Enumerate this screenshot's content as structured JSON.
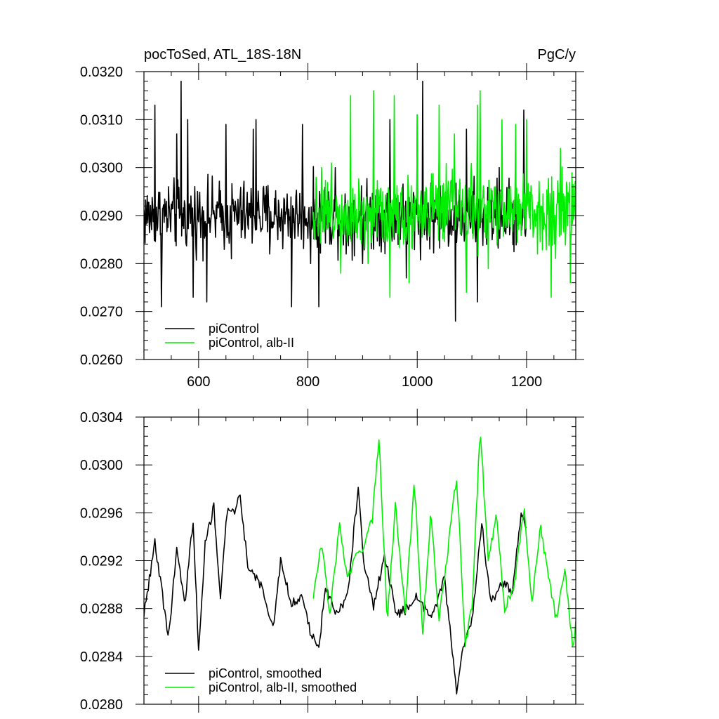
{
  "colors": {
    "piControl": "#000000",
    "alb_II": "#00ee00",
    "axis": "#000000"
  },
  "chart_data": [
    {
      "type": "line",
      "title_left": "pocToSed, ATL_18S-18N",
      "title_right": "PgC/y",
      "xlabel": "",
      "ylabel": "",
      "xlim": [
        500,
        1290
      ],
      "ylim": [
        0.026,
        0.032
      ],
      "xticks": [
        600,
        800,
        1000,
        1200
      ],
      "xtick_labels": [
        "600",
        "800",
        "1000",
        "1200"
      ],
      "show_xtick_labels": true,
      "yticks": [
        0.026,
        0.027,
        0.028,
        0.029,
        0.03,
        0.031,
        0.032
      ],
      "ytick_labels": [
        "0.0260",
        "0.0270",
        "0.0280",
        "0.0290",
        "0.0300",
        "0.0310",
        "0.0320"
      ],
      "grid": false,
      "legend": {
        "position": "bottom-left",
        "entries": [
          "piControl",
          "piControl, alb-II"
        ]
      },
      "series": [
        {
          "name": "piControl",
          "color_key": "piControl",
          "x_start": 500,
          "x_end": 1200,
          "mean": 0.029,
          "amp": 0.00105,
          "x": [
            520,
            532,
            560,
            568,
            580,
            590,
            615,
            650,
            660,
            700,
            705,
            730,
            770,
            790,
            805,
            820,
            850,
            870,
            900,
            950,
            980,
            1000,
            1010,
            1040,
            1070,
            1090,
            1110,
            1150,
            1180,
            1195
          ],
          "y": [
            0.0313,
            0.0271,
            0.0307,
            0.0318,
            0.031,
            0.0273,
            0.0272,
            0.0309,
            0.0281,
            0.0308,
            0.031,
            0.0282,
            0.0271,
            0.0309,
            0.028,
            0.0271,
            0.03,
            0.0282,
            0.028,
            0.031,
            0.0277,
            0.0311,
            0.0318,
            0.0303,
            0.0268,
            0.0308,
            0.0272,
            0.03,
            0.0301,
            0.0312
          ]
        },
        {
          "name": "piControl, alb-II",
          "color_key": "alb_II",
          "x_start": 810,
          "x_end": 1290,
          "mean": 0.0291,
          "amp": 0.00115,
          "x": [
            825,
            860,
            878,
            910,
            920,
            950,
            958,
            985,
            1000,
            1040,
            1068,
            1090,
            1110,
            1115,
            1130,
            1155,
            1180,
            1200,
            1220,
            1245,
            1262,
            1280
          ],
          "y": [
            0.03,
            0.0278,
            0.0315,
            0.028,
            0.0316,
            0.0273,
            0.0315,
            0.0276,
            0.0311,
            0.0313,
            0.0307,
            0.0274,
            0.0313,
            0.0316,
            0.0279,
            0.031,
            0.0309,
            0.031,
            0.0282,
            0.0273,
            0.0304,
            0.0276
          ]
        }
      ]
    },
    {
      "type": "line",
      "title_left": "",
      "title_right": "",
      "xlabel": "",
      "ylabel": "",
      "xlim": [
        500,
        1290
      ],
      "ylim": [
        0.028,
        0.0304
      ],
      "xticks": [
        600,
        800,
        1000,
        1200
      ],
      "xtick_labels": [
        "600",
        "800",
        "1000",
        "1200"
      ],
      "show_xtick_labels": false,
      "yticks": [
        0.028,
        0.0284,
        0.0288,
        0.0292,
        0.0296,
        0.03,
        0.0304
      ],
      "ytick_labels": [
        "0.0280",
        "0.0284",
        "0.0288",
        "0.0292",
        "0.0296",
        "0.0300",
        "0.0304"
      ],
      "grid": false,
      "legend": {
        "position": "bottom-left",
        "entries": [
          "piControl, smoothed",
          "piControl, alb-II, smoothed"
        ]
      },
      "series": [
        {
          "name": "piControl, smoothed",
          "color_key": "piControl",
          "x_start": 500,
          "x_end": 1200,
          "x": [
            500,
            520,
            545,
            560,
            575,
            590,
            600,
            612,
            628,
            640,
            652,
            664,
            676,
            690,
            700,
            718,
            736,
            750,
            770,
            790,
            805,
            820,
            832,
            850,
            872,
            892,
            902,
            920,
            940,
            962,
            982,
            1000,
            1025,
            1050,
            1072,
            1085,
            1100,
            1118,
            1135,
            1155,
            1175,
            1190,
            1200
          ],
          "y": [
            0.02875,
            0.02935,
            0.02855,
            0.0293,
            0.02885,
            0.02955,
            0.02845,
            0.02935,
            0.02965,
            0.0289,
            0.0296,
            0.0296,
            0.02975,
            0.02915,
            0.0291,
            0.02895,
            0.02865,
            0.0292,
            0.02885,
            0.0289,
            0.0286,
            0.02845,
            0.029,
            0.02875,
            0.0289,
            0.0298,
            0.0292,
            0.0288,
            0.02925,
            0.02875,
            0.0288,
            0.0289,
            0.0287,
            0.02905,
            0.0281,
            0.0285,
            0.0287,
            0.0295,
            0.02885,
            0.029,
            0.02895,
            0.0296,
            0.02945
          ]
        },
        {
          "name": "piControl, alb-II, smoothed",
          "color_key": "alb_II",
          "x_start": 810,
          "x_end": 1290,
          "x": [
            810,
            825,
            840,
            858,
            872,
            890,
            905,
            918,
            930,
            945,
            960,
            978,
            995,
            1010,
            1025,
            1040,
            1055,
            1072,
            1088,
            1100,
            1115,
            1130,
            1145,
            1160,
            1178,
            1195,
            1210,
            1225,
            1240,
            1255,
            1270,
            1285,
            1290
          ],
          "y": [
            0.0289,
            0.02935,
            0.02875,
            0.0295,
            0.02905,
            0.02925,
            0.02935,
            0.02955,
            0.03025,
            0.0287,
            0.02965,
            0.0288,
            0.02985,
            0.0286,
            0.0296,
            0.0287,
            0.02925,
            0.0299,
            0.0285,
            0.0288,
            0.0303,
            0.0292,
            0.0296,
            0.0288,
            0.029,
            0.02965,
            0.02885,
            0.0295,
            0.02905,
            0.0287,
            0.02915,
            0.02845,
            0.0287
          ]
        }
      ]
    }
  ]
}
